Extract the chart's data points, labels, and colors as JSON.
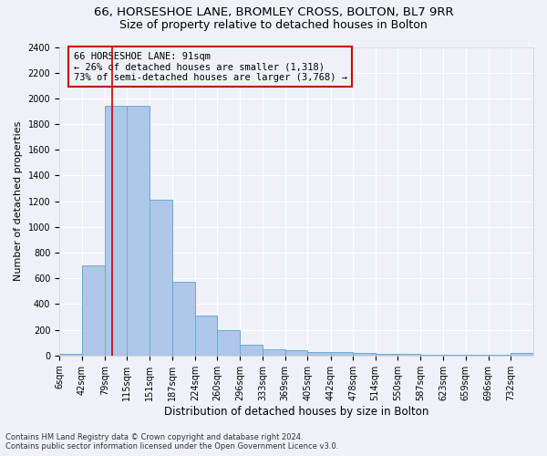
{
  "title": "66, HORSESHOE LANE, BROMLEY CROSS, BOLTON, BL7 9RR",
  "subtitle": "Size of property relative to detached houses in Bolton",
  "xlabel": "Distribution of detached houses by size in Bolton",
  "ylabel": "Number of detached properties",
  "bar_color": "#aec6e8",
  "bar_edge_color": "#6aaad4",
  "bar_heights": [
    15,
    700,
    1940,
    1940,
    1215,
    570,
    310,
    200,
    85,
    50,
    40,
    30,
    25,
    20,
    10,
    10,
    5,
    5,
    5,
    5,
    20
  ],
  "bin_edges": [
    6,
    42,
    79,
    115,
    151,
    187,
    224,
    260,
    296,
    333,
    369,
    405,
    442,
    478,
    514,
    550,
    587,
    623,
    659,
    696,
    732,
    768
  ],
  "xtick_labels": [
    "6sqm",
    "42sqm",
    "79sqm",
    "115sqm",
    "151sqm",
    "187sqm",
    "224sqm",
    "260sqm",
    "296sqm",
    "333sqm",
    "369sqm",
    "405sqm",
    "442sqm",
    "478sqm",
    "514sqm",
    "550sqm",
    "587sqm",
    "623sqm",
    "659sqm",
    "696sqm",
    "732sqm"
  ],
  "ylim": [
    0,
    2400
  ],
  "yticks": [
    0,
    200,
    400,
    600,
    800,
    1000,
    1200,
    1400,
    1600,
    1800,
    2000,
    2200,
    2400
  ],
  "property_size": 91,
  "red_line_color": "#cc0000",
  "annotation_line1": "66 HORSESHOE LANE: 91sqm",
  "annotation_line2": "← 26% of detached houses are smaller (1,318)",
  "annotation_line3": "73% of semi-detached houses are larger (3,768) →",
  "annotation_box_color": "#cc0000",
  "footer_line1": "Contains HM Land Registry data © Crown copyright and database right 2024.",
  "footer_line2": "Contains public sector information licensed under the Open Government Licence v3.0.",
  "background_color": "#eef2f8",
  "grid_color": "#ffffff",
  "title_fontsize": 9.5,
  "subtitle_fontsize": 9,
  "xlabel_fontsize": 8.5,
  "ylabel_fontsize": 8,
  "tick_fontsize": 7,
  "annotation_fontsize": 7.5,
  "footer_fontsize": 6
}
